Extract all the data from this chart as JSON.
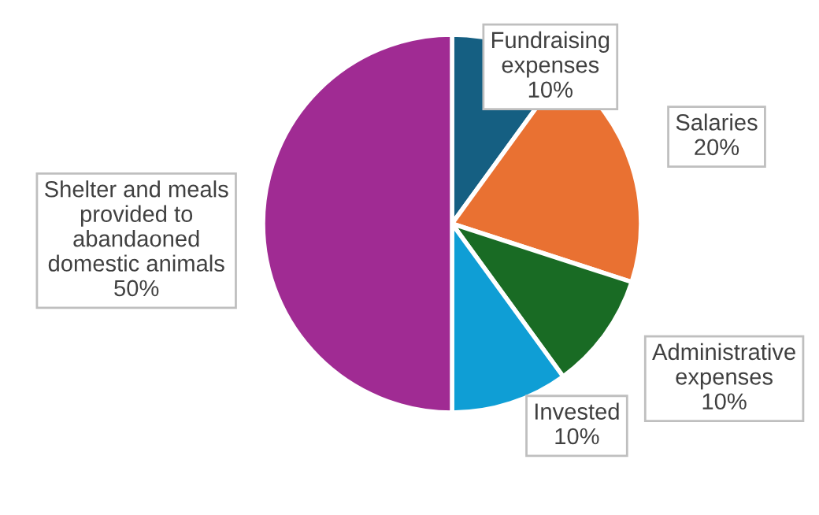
{
  "chart_data": {
    "type": "pie",
    "categories": [
      "Fundraising\nexpenses",
      "Salaries",
      "Administrative\nexpenses",
      "Invested",
      "Shelter and meals\nprovided to\nabandaoned\ndomestic animals"
    ],
    "values": [
      10,
      20,
      10,
      10,
      50
    ],
    "value_labels": [
      "10%",
      "20%",
      "10%",
      "10%",
      "50%"
    ],
    "colors": [
      "#155f82",
      "#e97132",
      "#196b24",
      "#0f9ed5",
      "#a02b93"
    ]
  }
}
